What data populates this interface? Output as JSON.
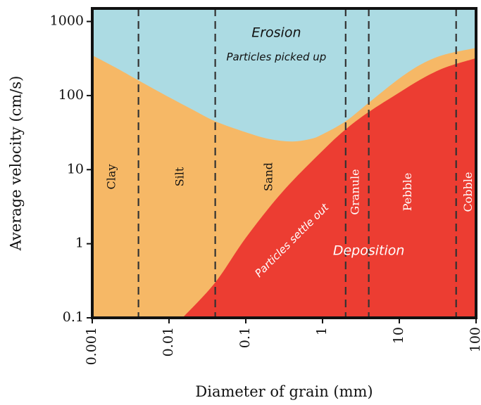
{
  "chart_data": {
    "type": "area",
    "title": "",
    "xlabel": "Diameter of grain (mm)",
    "ylabel": "Average velocity (cm/s)",
    "x_scale": "log",
    "y_scale": "log",
    "xlim": [
      0.001,
      100
    ],
    "ylim": [
      0.1,
      1500
    ],
    "x_ticks": [
      {
        "value": 0.001,
        "label": "0.001"
      },
      {
        "value": 0.01,
        "label": "0.01"
      },
      {
        "value": 0.1,
        "label": "0.1"
      },
      {
        "value": 1,
        "label": "1"
      },
      {
        "value": 10,
        "label": "10"
      },
      {
        "value": 100,
        "label": "100"
      }
    ],
    "y_ticks": [
      {
        "value": 0.1,
        "label": "0.1"
      },
      {
        "value": 1,
        "label": "1"
      },
      {
        "value": 10,
        "label": "10"
      },
      {
        "value": 100,
        "label": "100"
      },
      {
        "value": 1000,
        "label": "1000"
      }
    ],
    "grid": false,
    "series": [
      {
        "x": [
          0.001,
          0.002,
          0.004,
          0.01,
          0.02,
          0.04,
          0.1,
          0.2,
          0.4,
          0.7,
          1,
          2,
          4,
          10,
          20,
          40,
          100
        ],
        "y": [
          350,
          240,
          160,
          95,
          65,
          45,
          32,
          26,
          24,
          26,
          30,
          45,
          80,
          170,
          270,
          360,
          440
        ],
        "color": "#f6b866"
      },
      {
        "x": [
          0.015,
          0.04,
          0.1,
          0.3,
          1,
          2,
          4,
          10,
          20,
          40,
          100
        ],
        "y": [
          0.1,
          0.3,
          1.2,
          5,
          18,
          35,
          60,
          110,
          170,
          240,
          320
        ],
        "color": "#ec3d32"
      }
    ],
    "erosion_color": "#acdbe3",
    "boundaries": [
      {
        "x": 0.004,
        "label": "Clay",
        "label_x": 0.0018,
        "label_y": 8,
        "color": "#111111"
      },
      {
        "x": 0.04,
        "label": "Silt",
        "label_x": 0.014,
        "label_y": 8,
        "color": "#111111"
      },
      {
        "x": 2,
        "label": "Sand",
        "label_x": 0.2,
        "label_y": 8,
        "color": "#111111"
      },
      {
        "x": 4,
        "label": "Granule",
        "label_x": 2.7,
        "label_y": 5,
        "color": "#ffffff"
      },
      {
        "x": 55,
        "label": "Pebble",
        "label_x": 13,
        "label_y": 5,
        "color": "#ffffff"
      },
      {
        "x": null,
        "label": "Cobble",
        "label_x": 80,
        "label_y": 5,
        "color": "#ffffff"
      }
    ],
    "annotations": [
      {
        "text": "Erosion",
        "x": 0.25,
        "y": 700,
        "style": "region-title",
        "color": "#111111",
        "rotate": 0
      },
      {
        "text": "Particles picked up",
        "x": 0.25,
        "y": 330,
        "style": "region-sub",
        "color": "#111111",
        "rotate": 0
      },
      {
        "text": "Deposition",
        "x": 4,
        "y": 0.8,
        "style": "region-title",
        "color": "#ffffff",
        "rotate": 0
      },
      {
        "text": "Particles settle out",
        "x": 0.4,
        "y": 1.1,
        "style": "region-sub",
        "color": "#ffffff",
        "rotate": -45
      }
    ]
  }
}
